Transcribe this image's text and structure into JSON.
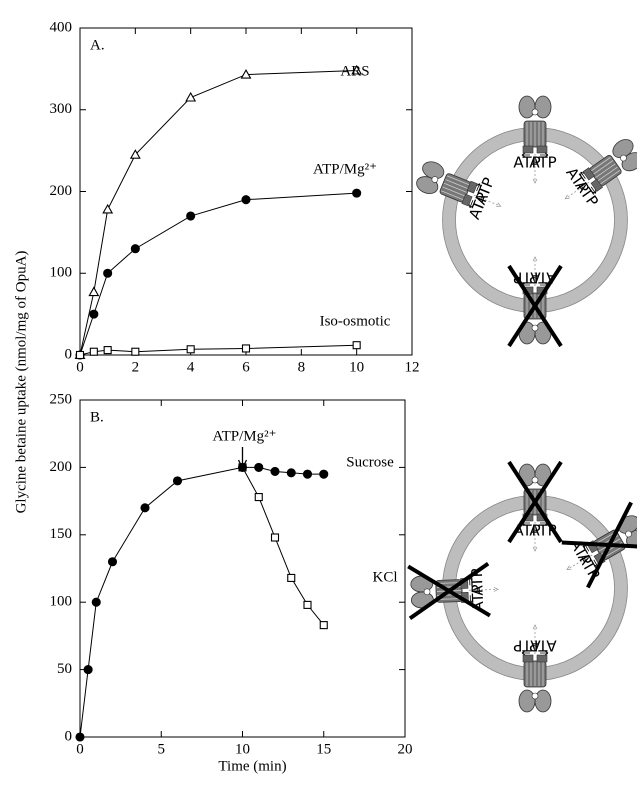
{
  "ylabel": "Glycine betaine uptake (nmol/mg of OpuA)",
  "chart_data": [
    {
      "type": "line",
      "title": "A.",
      "xlim": [
        0,
        12
      ],
      "xticks": [
        0,
        2,
        4,
        6,
        8,
        10,
        12
      ],
      "ylim": [
        0,
        400
      ],
      "yticks": [
        0,
        100,
        200,
        300,
        400
      ],
      "series": [
        {
          "name": "ARS",
          "marker": "triangle-open",
          "color": "#000000",
          "x": [
            0,
            0.5,
            1,
            2,
            4,
            6,
            10
          ],
          "values": [
            0,
            77,
            178,
            245,
            315,
            343,
            348
          ]
        },
        {
          "name": "ATP/Mg²⁺",
          "marker": "circle-filled",
          "color": "#000000",
          "x": [
            0,
            0.5,
            1,
            2,
            4,
            6,
            10
          ],
          "values": [
            0,
            50,
            100,
            130,
            170,
            190,
            198
          ]
        },
        {
          "name": "Iso-osmotic",
          "marker": "square-open",
          "color": "#000000",
          "x": [
            0,
            0.5,
            1,
            2,
            4,
            6,
            10
          ],
          "values": [
            0,
            4,
            6,
            4,
            7,
            8,
            12
          ]
        }
      ]
    },
    {
      "type": "line",
      "title": "B.",
      "xlabel": "Time (min)",
      "annotation": "ATP/Mg²⁺",
      "xlim": [
        0,
        20
      ],
      "xticks": [
        0,
        5,
        10,
        15,
        20
      ],
      "ylim": [
        0,
        250
      ],
      "yticks": [
        0,
        50,
        100,
        150,
        200,
        250
      ],
      "series": [
        {
          "name": "KCl",
          "marker": "square-open",
          "color": "#000000",
          "x": [
            10,
            11,
            12,
            13,
            14,
            15
          ],
          "values": [
            200,
            178,
            148,
            118,
            98,
            83
          ]
        },
        {
          "name": "Sucrose",
          "marker": "circle-filled",
          "color": "#000000",
          "x": [
            0,
            0.5,
            1,
            2,
            4,
            6,
            10,
            11,
            12,
            13,
            14,
            15
          ],
          "values": [
            0,
            50,
            100,
            130,
            170,
            190,
            200,
            200,
            197,
            196,
            195,
            195
          ]
        }
      ]
    }
  ],
  "diagrams": [
    {
      "transporters": [
        {
          "labels": [
            "ATP",
            "ATP"
          ],
          "crossed": false
        },
        {
          "labels": [
            "ATP",
            "ATP"
          ],
          "crossed": false
        },
        {
          "labels": [
            "ATP",
            "ATP"
          ],
          "crossed": false
        },
        {
          "labels": [
            "ATP",
            "ATP"
          ],
          "crossed": true
        }
      ]
    },
    {
      "transporters": [
        {
          "labels": [
            "ATP",
            "ATP"
          ],
          "crossed": true
        },
        {
          "labels": [
            "ATP",
            "ATP"
          ],
          "crossed": true
        },
        {
          "labels": [
            "ATP",
            "ATP"
          ],
          "crossed": true
        },
        {
          "labels": [
            "ATP",
            "ATP"
          ],
          "crossed": false
        }
      ]
    }
  ]
}
